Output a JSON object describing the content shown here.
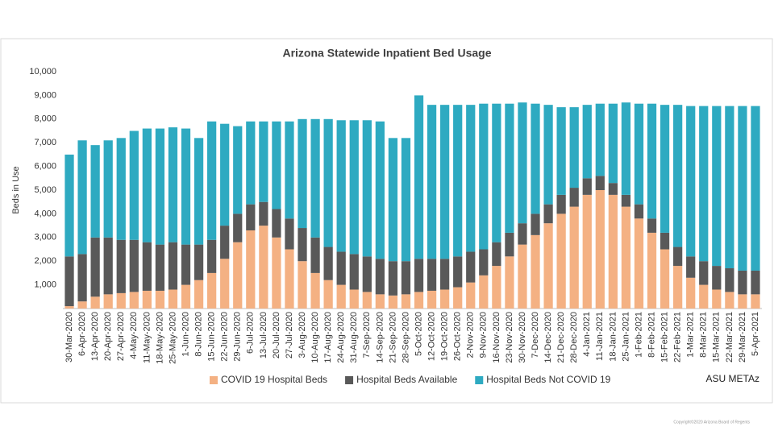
{
  "chart_data": {
    "type": "stacked_bar",
    "title": "Arizona Statewide Inpatient Bed Usage",
    "y_label": "Beds in Use",
    "categories": [
      "30-Mar-2020",
      "6-Apr-2020",
      "13-Apr-2020",
      "20-Apr-2020",
      "27-Apr-2020",
      "4-May-2020",
      "11-May-2020",
      "18-May-2020",
      "25-May-2020",
      "1-Jun-2020",
      "8-Jun-2020",
      "15-Jun-2020",
      "22-Jun-2020",
      "29-Jun-2020",
      "6-Jul-2020",
      "13-Jul-2020",
      "20-Jul-2020",
      "27-Jul-2020",
      "3-Aug-2020",
      "10-Aug-2020",
      "17-Aug-2020",
      "24-Aug-2020",
      "31-Aug-2020",
      "7-Sep-2020",
      "14-Sep-2020",
      "21-Sep-2020",
      "28-Sep-2020",
      "5-Oct-2020",
      "12-Oct-2020",
      "19-Oct-2020",
      "26-Oct-2020",
      "2-Nov-2020",
      "9-Nov-2020",
      "16-Nov-2020",
      "23-Nov-2020",
      "30-Nov-2020",
      "7-Dec-2020",
      "14-Dec-2020",
      "21-Dec-2020",
      "28-Dec-2020",
      "4-Jan-2021",
      "11-Jan-2021",
      "18-Jan-2021",
      "25-Jan-2021",
      "1-Feb-2021",
      "8-Feb-2021",
      "15-Feb-2021",
      "22-Feb-2021",
      "1-Mar-2021",
      "8-Mar-2021",
      "15-Mar-2021",
      "22-Mar-2021",
      "29-Mar-2021",
      "5-Apr-2021"
    ],
    "series": [
      {
        "name": "COVID 19 Hospital Beds",
        "color": "#f4b183",
        "values": [
          100,
          300,
          500,
          600,
          650,
          700,
          750,
          750,
          800,
          1000,
          1200,
          1500,
          2100,
          2800,
          3300,
          3500,
          3000,
          2500,
          2000,
          1500,
          1200,
          1000,
          800,
          700,
          600,
          550,
          600,
          700,
          750,
          800,
          900,
          1100,
          1400,
          1800,
          2200,
          2700,
          3100,
          3600,
          4000,
          4300,
          4800,
          5000,
          4800,
          4300,
          3800,
          3200,
          2500,
          1800,
          1300,
          1000,
          800,
          700,
          600,
          600
        ]
      },
      {
        "name": "Hospital Beds Available",
        "color": "#595959",
        "values": [
          2100,
          2000,
          2500,
          2400,
          2250,
          2200,
          2050,
          1950,
          2000,
          1700,
          1500,
          1400,
          1400,
          1200,
          1100,
          1000,
          1200,
          1300,
          1400,
          1500,
          1400,
          1400,
          1500,
          1500,
          1500,
          1450,
          1400,
          1400,
          1350,
          1300,
          1300,
          1300,
          1100,
          1000,
          1000,
          900,
          900,
          800,
          800,
          800,
          700,
          600,
          500,
          500,
          600,
          600,
          700,
          800,
          900,
          1000,
          1000,
          1000,
          1000,
          1000
        ]
      },
      {
        "name": "Hospital Beds Not COVID 19",
        "color": "#2eaac1",
        "values": [
          4300,
          4800,
          3900,
          4100,
          4300,
          4600,
          4800,
          4900,
          4850,
          4900,
          4500,
          5000,
          4300,
          3700,
          3500,
          3400,
          3700,
          4100,
          4600,
          5000,
          5400,
          5550,
          5650,
          5750,
          5800,
          5200,
          5200,
          6900,
          6500,
          6500,
          6400,
          6200,
          6150,
          5850,
          5450,
          5100,
          4650,
          4200,
          3700,
          3400,
          3100,
          3050,
          3350,
          3900,
          4250,
          4850,
          5400,
          6000,
          6350,
          6550,
          6750,
          6850,
          6950,
          6950
        ]
      }
    ],
    "ylim": [
      0,
      10000
    ],
    "yticks": [
      {
        "value": 1000,
        "label": "1,000"
      },
      {
        "value": 2000,
        "label": "2,000"
      },
      {
        "value": 3000,
        "label": "3,000"
      },
      {
        "value": 4000,
        "label": "4,000"
      },
      {
        "value": 5000,
        "label": "5,000"
      },
      {
        "value": 6000,
        "label": "6,000"
      },
      {
        "value": 7000,
        "label": "7,000"
      },
      {
        "value": 8000,
        "label": "8,000"
      },
      {
        "value": 9000,
        "label": "9,000"
      },
      {
        "value": 10000,
        "label": "10,000"
      }
    ],
    "grid": false,
    "legend": "bottom"
  },
  "logo": "ASU METAz",
  "footer": "Copyright©2020 Arizona Board of Regents"
}
